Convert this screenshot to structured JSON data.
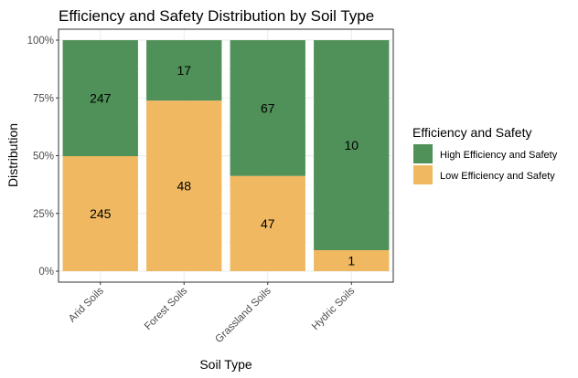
{
  "chart_data": {
    "type": "bar",
    "stacked": "percent",
    "title": "Efficiency and Safety Distribution by Soil Type",
    "xlabel": "Soil Type",
    "ylabel": "Distribution",
    "categories": [
      "Arid Soils",
      "Forest Soils",
      "Grassland Soils",
      "Hydric Soils"
    ],
    "y_ticks": [
      "0%",
      "25%",
      "50%",
      "75%",
      "100%"
    ],
    "ylim": [
      0,
      1
    ],
    "grid": true,
    "legend": {
      "title": "Efficiency and Safety",
      "placement": "right"
    },
    "series": [
      {
        "name": "High Efficiency and Safety",
        "color": "#4f9158",
        "values": [
          247,
          17,
          67,
          10
        ]
      },
      {
        "name": "Low Efficiency and Safety",
        "color": "#f0b961",
        "values": [
          245,
          48,
          47,
          1
        ]
      }
    ]
  }
}
